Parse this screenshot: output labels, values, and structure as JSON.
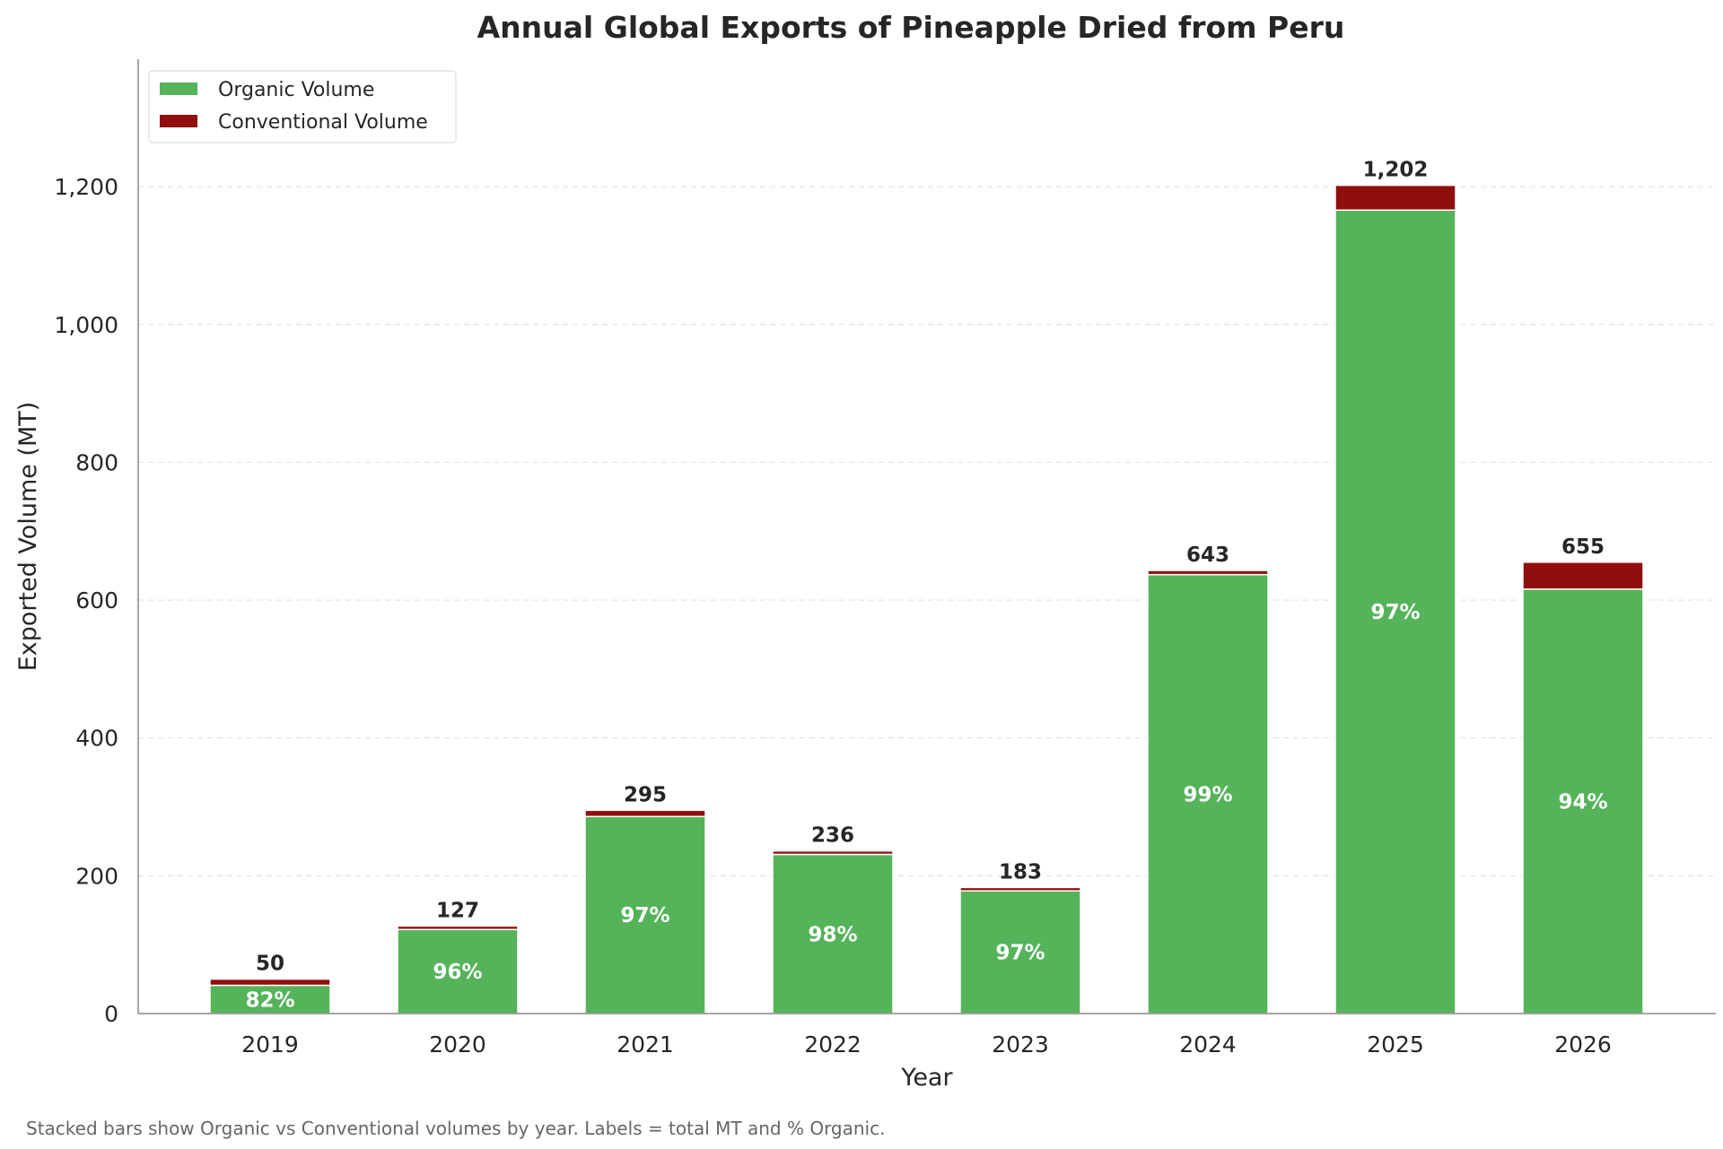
{
  "chart_data": {
    "type": "bar",
    "stacked": true,
    "title": "Annual Global Exports of Pineapple Dried from Peru",
    "xlabel": "Year",
    "ylabel": "Exported Volume (MT)",
    "categories": [
      "2019",
      "2020",
      "2021",
      "2022",
      "2023",
      "2024",
      "2025",
      "2026"
    ],
    "series": [
      {
        "name": "Organic Volume",
        "color": "#55b35a",
        "values": [
          41,
          122,
          286,
          231,
          178,
          637,
          1166,
          616
        ]
      },
      {
        "name": "Conventional Volume",
        "color": "#8f0e0e",
        "values": [
          9,
          5,
          9,
          5,
          5,
          6,
          36,
          39
        ]
      }
    ],
    "totals": [
      "50",
      "127",
      "295",
      "236",
      "183",
      "643",
      "1,202",
      "655"
    ],
    "organic_pct": [
      "82%",
      "96%",
      "97%",
      "98%",
      "97%",
      "99%",
      "97%",
      "94%"
    ],
    "ylim": [
      0,
      1385
    ],
    "yticks": [
      0,
      200,
      400,
      600,
      800,
      1000,
      1200
    ],
    "ytick_labels": [
      "0",
      "200",
      "400",
      "600",
      "800",
      "1,000",
      "1,200"
    ],
    "grid": "y dashed",
    "legend": "top-left"
  },
  "footnote": "Stacked bars show Organic vs Conventional volumes by year. Labels = total MT and % Organic."
}
